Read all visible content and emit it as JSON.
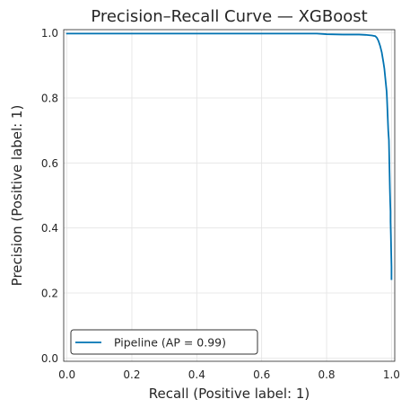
{
  "chart_data": {
    "type": "line",
    "title": "Precision–Recall Curve — XGBoost",
    "xlabel": "Recall (Positive label: 1)",
    "ylabel": "Precision (Positive label: 1)",
    "xlim": [
      0.0,
      1.0
    ],
    "ylim": [
      0.0,
      1.0
    ],
    "xticks": [
      "0.0",
      "0.2",
      "0.4",
      "0.6",
      "0.8",
      "1.0"
    ],
    "yticks": [
      "0.0",
      "0.2",
      "0.4",
      "0.6",
      "0.8",
      "1.0"
    ],
    "grid": true,
    "legend_position": "lower-left",
    "series": [
      {
        "name": "Pipeline (AP = 0.99)",
        "color": "#0173b2",
        "x": [
          0.0,
          0.0,
          0.3,
          0.5,
          0.7,
          0.77,
          0.8,
          0.85,
          0.9,
          0.92,
          0.93,
          0.94,
          0.95,
          0.955,
          0.96,
          0.965,
          0.97,
          0.975,
          0.978,
          0.981,
          0.983,
          0.985,
          0.986,
          0.988,
          0.99,
          0.992,
          0.993,
          0.994,
          0.995,
          0.996,
          0.997,
          0.997,
          0.998,
          0.999,
          1.0,
          1.0
        ],
        "y": [
          1.0,
          0.998,
          0.998,
          0.998,
          0.998,
          0.998,
          0.996,
          0.995,
          0.995,
          0.994,
          0.993,
          0.992,
          0.99,
          0.985,
          0.975,
          0.96,
          0.94,
          0.91,
          0.89,
          0.86,
          0.84,
          0.82,
          0.8,
          0.75,
          0.7,
          0.67,
          0.62,
          0.57,
          0.52,
          0.48,
          0.45,
          0.42,
          0.38,
          0.33,
          0.28,
          0.24
        ]
      }
    ]
  }
}
